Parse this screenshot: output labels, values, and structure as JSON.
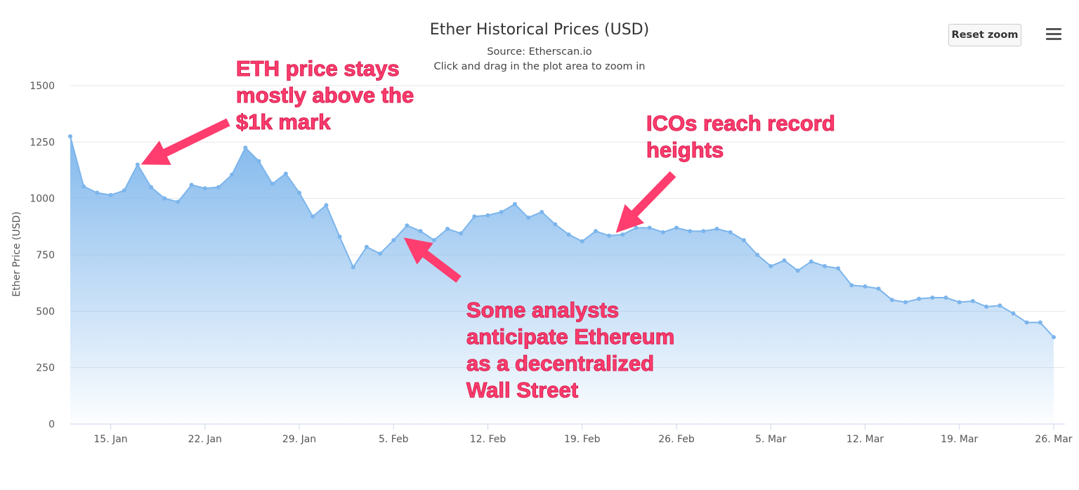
{
  "header": {
    "title": "Ether Historical Prices (USD)",
    "subtitle": "Source: Etherscan.io",
    "hint": "Click and drag in the plot area to zoom in"
  },
  "controls": {
    "reset_zoom_label": "Reset zoom",
    "menu_icon": "hamburger-menu-icon"
  },
  "annotations": [
    {
      "text": "ETH price stays\nmostly above the\n$1k mark"
    },
    {
      "text": "ICOs reach record\nheights"
    },
    {
      "text": "Some analysts\nanticipate Ethereum\nas a decentralized\nWall Street"
    }
  ],
  "colors": {
    "series": "#7cb5ec",
    "annotation": "#ff3d6e",
    "grid": "#e6e6e6"
  },
  "chart_data": {
    "type": "area",
    "title": "Ether Historical Prices (USD)",
    "subtitle": "Source: Etherscan.io",
    "xlabel": "",
    "ylabel": "Ether Price (USD)",
    "ylim": [
      0,
      1500
    ],
    "yticks": [
      0,
      250,
      500,
      750,
      1000,
      1250,
      1500
    ],
    "xlim": [
      "2018-01-12",
      "2018-03-26"
    ],
    "xticks": [
      {
        "date": "2018-01-15",
        "label": "15. Jan"
      },
      {
        "date": "2018-01-22",
        "label": "22. Jan"
      },
      {
        "date": "2018-01-29",
        "label": "29. Jan"
      },
      {
        "date": "2018-02-05",
        "label": "5. Feb"
      },
      {
        "date": "2018-02-12",
        "label": "12. Feb"
      },
      {
        "date": "2018-02-19",
        "label": "19. Feb"
      },
      {
        "date": "2018-02-26",
        "label": "26. Feb"
      },
      {
        "date": "2018-03-05",
        "label": "5. Mar"
      },
      {
        "date": "2018-03-12",
        "label": "12. Mar"
      },
      {
        "date": "2018-03-19",
        "label": "19. Mar"
      },
      {
        "date": "2018-03-26",
        "label": "26. Mar"
      }
    ],
    "grid": true,
    "legend": "none",
    "x": [
      "2018-01-12",
      "2018-01-13",
      "2018-01-14",
      "2018-01-15",
      "2018-01-16",
      "2018-01-17",
      "2018-01-18",
      "2018-01-19",
      "2018-01-20",
      "2018-01-21",
      "2018-01-22",
      "2018-01-23",
      "2018-01-24",
      "2018-01-25",
      "2018-01-26",
      "2018-01-27",
      "2018-01-28",
      "2018-01-29",
      "2018-01-30",
      "2018-01-31",
      "2018-02-01",
      "2018-02-02",
      "2018-02-03",
      "2018-02-04",
      "2018-02-05",
      "2018-02-06",
      "2018-02-07",
      "2018-02-08",
      "2018-02-09",
      "2018-02-10",
      "2018-02-11",
      "2018-02-12",
      "2018-02-13",
      "2018-02-14",
      "2018-02-15",
      "2018-02-16",
      "2018-02-17",
      "2018-02-18",
      "2018-02-19",
      "2018-02-20",
      "2018-02-21",
      "2018-02-22",
      "2018-02-23",
      "2018-02-24",
      "2018-02-25",
      "2018-02-26",
      "2018-02-27",
      "2018-02-28",
      "2018-03-01",
      "2018-03-02",
      "2018-03-03",
      "2018-03-04",
      "2018-03-05",
      "2018-03-06",
      "2018-03-07",
      "2018-03-08",
      "2018-03-09",
      "2018-03-10",
      "2018-03-11",
      "2018-03-12",
      "2018-03-13",
      "2018-03-14",
      "2018-03-15",
      "2018-03-16",
      "2018-03-17",
      "2018-03-18",
      "2018-03-19",
      "2018-03-20",
      "2018-03-21",
      "2018-03-22",
      "2018-03-23",
      "2018-03-24",
      "2018-03-25",
      "2018-03-26"
    ],
    "series": [
      {
        "values": [
          1275,
          1053,
          1025,
          1015,
          1035,
          1150,
          1050,
          1000,
          985,
          1060,
          1045,
          1050,
          1105,
          1225,
          1165,
          1065,
          1110,
          1025,
          920,
          970,
          830,
          695,
          785,
          755,
          815,
          880,
          855,
          815,
          865,
          845,
          920,
          925,
          940,
          975,
          915,
          940,
          885,
          840,
          810,
          855,
          835,
          840,
          870,
          870,
          850,
          870,
          855,
          855,
          865,
          850,
          815,
          750,
          700,
          725,
          680,
          720,
          700,
          690,
          615,
          610,
          600,
          550,
          540,
          555,
          560,
          560,
          540,
          545,
          520,
          525,
          490,
          450,
          450,
          385
        ]
      }
    ]
  }
}
